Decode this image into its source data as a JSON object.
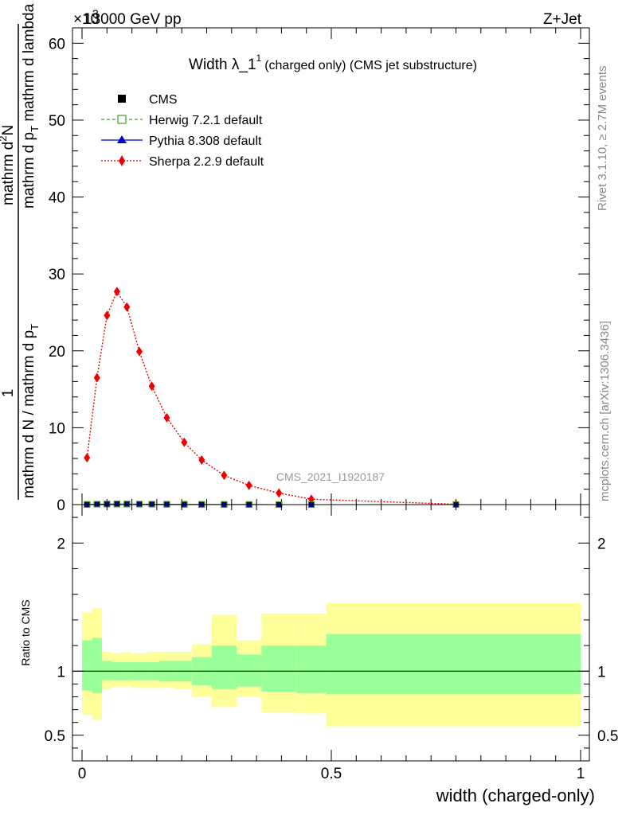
{
  "header": {
    "energy_label": "13000 GeV pp",
    "process_label": "Z+Jet",
    "multiplier_label": "×10",
    "multiplier_exp": "3"
  },
  "side_labels": {
    "rivet": "Rivet 3.1.10, ≥ 2.7M events",
    "mcplots": "mcplots.cern.ch [arXiv:1306.3436]"
  },
  "watermark": "CMS_2021_I1920187",
  "chart_data": [
    {
      "type": "line",
      "title": "Width λ_1",
      "title_sup": "1",
      "subtitle": "(charged only) (CMS jet substructure)",
      "ylabel_numerator_1": "1",
      "ylabel_numerator_2": "mathrm d",
      "ylabel_numerator_sup": "2",
      "ylabel_numerator_3": "N",
      "ylabel_denominator_1": "mathrm d N / mathrm d p",
      "ylabel_denominator_sub": "T",
      "ylabel_right_1": "mathrm d p",
      "ylabel_right_sub": "T",
      "ylabel_right_2": " mathrm d lambda",
      "xlim": [
        0,
        1
      ],
      "ylim": [
        0,
        62
      ],
      "y_scale_factor": 1000,
      "y_ticks": [
        0,
        10,
        20,
        30,
        40,
        50,
        60
      ],
      "y_tick_labels": [
        "0",
        "10",
        "20",
        "30",
        "40",
        "50",
        "60"
      ],
      "legend_position": "top-left",
      "legend": [
        {
          "name": "CMS",
          "color": "#000000",
          "marker": "filled-square",
          "line": "none"
        },
        {
          "name": "Herwig 7.2.1 default",
          "color": "#4c9a1e",
          "marker": "open-square",
          "line": "dashed"
        },
        {
          "name": "Pythia 8.308 default",
          "color": "#0000cc",
          "marker": "filled-triangle",
          "line": "solid"
        },
        {
          "name": "Sherpa 2.2.9 default",
          "color": "#ee0000",
          "marker": "filled-diamond",
          "line": "dotted"
        }
      ],
      "series": [
        {
          "name": "Sherpa 2.2.9 default",
          "x": [
            0.01,
            0.03,
            0.05,
            0.07,
            0.09,
            0.115,
            0.14,
            0.17,
            0.205,
            0.24,
            0.285,
            0.335,
            0.395,
            0.46,
            0.75
          ],
          "y": [
            6.1,
            16.5,
            24.6,
            27.7,
            25.7,
            19.9,
            15.4,
            11.3,
            8.1,
            5.8,
            3.8,
            2.5,
            1.5,
            0.7,
            0.05
          ]
        },
        {
          "name": "CMS",
          "x": [
            0.01,
            0.03,
            0.05,
            0.07,
            0.09,
            0.115,
            0.14,
            0.17,
            0.205,
            0.24,
            0.285,
            0.335,
            0.395,
            0.46,
            0.75
          ],
          "y": [
            0.02,
            0.05,
            0.07,
            0.08,
            0.07,
            0.06,
            0.05,
            0.04,
            0.03,
            0.02,
            0.015,
            0.01,
            0.005,
            0.003,
            0.0005
          ]
        }
      ]
    },
    {
      "type": "area",
      "ylabel": "Ratio to CMS",
      "xlabel": "width (charged-only)",
      "xlim": [
        0,
        1
      ],
      "ylim": [
        0.3,
        2.3
      ],
      "x_ticks": [
        0,
        0.5,
        1
      ],
      "x_tick_labels": [
        "0",
        "0.5",
        "1"
      ],
      "y_ticks": [
        0.5,
        1,
        2
      ],
      "y_tick_labels": [
        "0.5",
        "1",
        "2"
      ],
      "reference_line": 1,
      "band_colors": {
        "inner": "#99ff99",
        "outer": "#ffff99"
      },
      "bins": [
        {
          "x0": 0.0,
          "x1": 0.02,
          "outer_lo": 0.66,
          "outer_hi": 1.46,
          "inner_lo": 0.85,
          "inner_hi": 1.24
        },
        {
          "x0": 0.02,
          "x1": 0.04,
          "outer_lo": 0.62,
          "outer_hi": 1.49,
          "inner_lo": 0.83,
          "inner_hi": 1.26
        },
        {
          "x0": 0.04,
          "x1": 0.06,
          "outer_lo": 0.86,
          "outer_hi": 1.15,
          "inner_lo": 0.93,
          "inner_hi": 1.08
        },
        {
          "x0": 0.06,
          "x1": 0.08,
          "outer_lo": 0.88,
          "outer_hi": 1.14,
          "inner_lo": 0.93,
          "inner_hi": 1.07
        },
        {
          "x0": 0.08,
          "x1": 0.1,
          "outer_lo": 0.88,
          "outer_hi": 1.15,
          "inner_lo": 0.93,
          "inner_hi": 1.07
        },
        {
          "x0": 0.1,
          "x1": 0.13,
          "outer_lo": 0.87,
          "outer_hi": 1.14,
          "inner_lo": 0.93,
          "inner_hi": 1.07
        },
        {
          "x0": 0.13,
          "x1": 0.155,
          "outer_lo": 0.87,
          "outer_hi": 1.15,
          "inner_lo": 0.93,
          "inner_hi": 1.07
        },
        {
          "x0": 0.155,
          "x1": 0.185,
          "outer_lo": 0.87,
          "outer_hi": 1.15,
          "inner_lo": 0.92,
          "inner_hi": 1.08
        },
        {
          "x0": 0.185,
          "x1": 0.22,
          "outer_lo": 0.86,
          "outer_hi": 1.15,
          "inner_lo": 0.92,
          "inner_hi": 1.08
        },
        {
          "x0": 0.22,
          "x1": 0.26,
          "outer_lo": 0.8,
          "outer_hi": 1.21,
          "inner_lo": 0.89,
          "inner_hi": 1.11
        },
        {
          "x0": 0.26,
          "x1": 0.31,
          "outer_lo": 0.72,
          "outer_hi": 1.44,
          "inner_lo": 0.86,
          "inner_hi": 1.2
        },
        {
          "x0": 0.31,
          "x1": 0.36,
          "outer_lo": 0.8,
          "outer_hi": 1.24,
          "inner_lo": 0.88,
          "inner_hi": 1.13
        },
        {
          "x0": 0.36,
          "x1": 0.43,
          "outer_lo": 0.68,
          "outer_hi": 1.45,
          "inner_lo": 0.84,
          "inner_hi": 1.2
        },
        {
          "x0": 0.43,
          "x1": 0.49,
          "outer_lo": 0.67,
          "outer_hi": 1.45,
          "inner_lo": 0.83,
          "inner_hi": 1.2
        },
        {
          "x0": 0.49,
          "x1": 1.0,
          "outer_lo": 0.57,
          "outer_hi": 1.53,
          "inner_lo": 0.82,
          "inner_hi": 1.29
        }
      ]
    }
  ]
}
